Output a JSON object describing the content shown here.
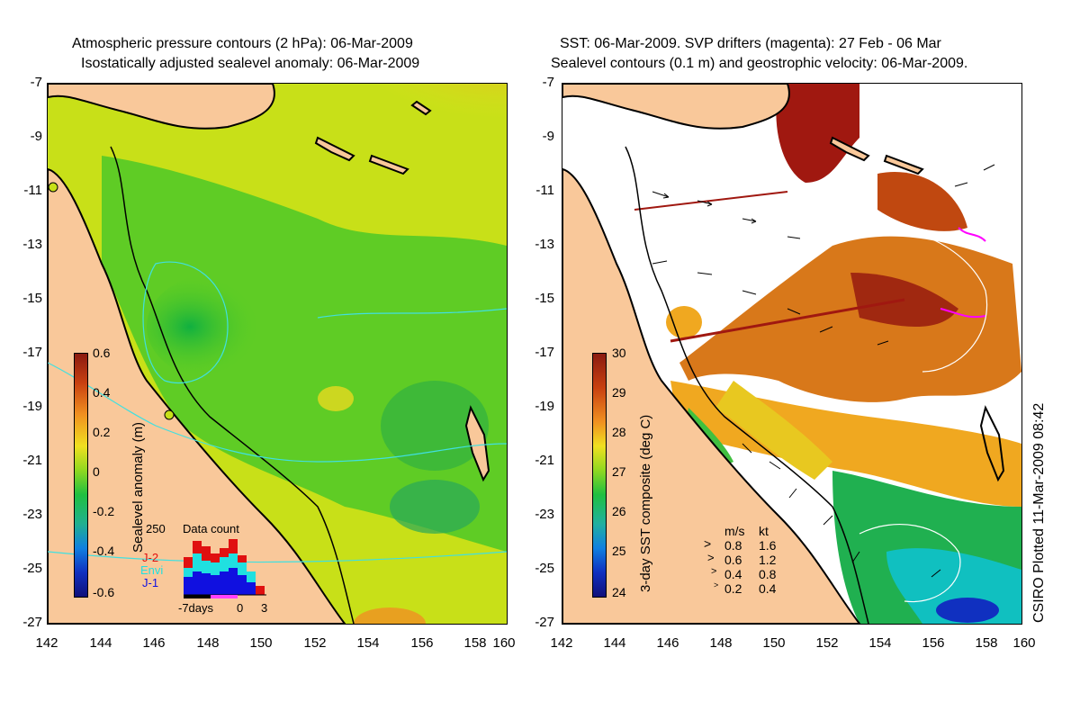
{
  "left_panel": {
    "title_line1": "Atmospheric pressure contours (2 hPa): 06-Mar-2009",
    "title_line2": "Isostatically adjusted sealevel anomaly: 06-Mar-2009",
    "y_ticks": [
      "-7",
      "-9",
      "-11",
      "-13",
      "-15",
      "-17",
      "-19",
      "-21",
      "-23",
      "-25",
      "-27"
    ],
    "x_ticks": [
      "142",
      "144",
      "146",
      "148",
      "150",
      "152",
      "154",
      "156",
      "158",
      "160"
    ],
    "colorbar": {
      "label": "Sealevel anomaly (m)",
      "ticks": [
        "0.6",
        "0.4",
        "0.2",
        "0",
        "-0.2",
        "-0.4",
        "-0.6"
      ],
      "range": [
        -0.6,
        0.6
      ]
    },
    "data_count": {
      "title": "Data count",
      "max_label": "250",
      "legend": [
        "J-2",
        "Envi",
        "J-1"
      ],
      "legend_colors": [
        "#e01010",
        "#20e0e0",
        "#1010e0"
      ],
      "x_labels": [
        "-7days",
        "0",
        "3"
      ]
    }
  },
  "right_panel": {
    "title_line1": "SST: 06-Mar-2009. SVP drifters (magenta): 27 Feb - 06 Mar",
    "title_line2": "Sealevel contours (0.1 m) and geostrophic velocity: 06-Mar-2009.",
    "y_ticks": [
      "-7",
      "-9",
      "-11",
      "-13",
      "-15",
      "-17",
      "-19",
      "-21",
      "-23",
      "-25",
      "-27"
    ],
    "x_ticks": [
      "142",
      "144",
      "146",
      "148",
      "150",
      "152",
      "154",
      "156",
      "158",
      "160"
    ],
    "colorbar": {
      "label": "3-day SST composite (deg C)",
      "ticks": [
        "30",
        "29",
        "28",
        "27",
        "26",
        "25",
        "24"
      ],
      "range": [
        24,
        30
      ]
    },
    "velocity_legend": {
      "header_ms": "m/s",
      "header_kt": "kt",
      "rows": [
        {
          "ms": "0.8",
          "kt": "1.6"
        },
        {
          "ms": "0.6",
          "kt": "1.2"
        },
        {
          "ms": "0.4",
          "kt": "0.8"
        },
        {
          "ms": "0.2",
          "kt": "0.4"
        }
      ]
    }
  },
  "credit": "CSIRO Plotted 11-Mar-2009 08:42",
  "colors": {
    "land": "#f9c89a",
    "coast": "#000000",
    "pressure_contour": "#40e0e0",
    "drifter": "#ff00ff"
  }
}
